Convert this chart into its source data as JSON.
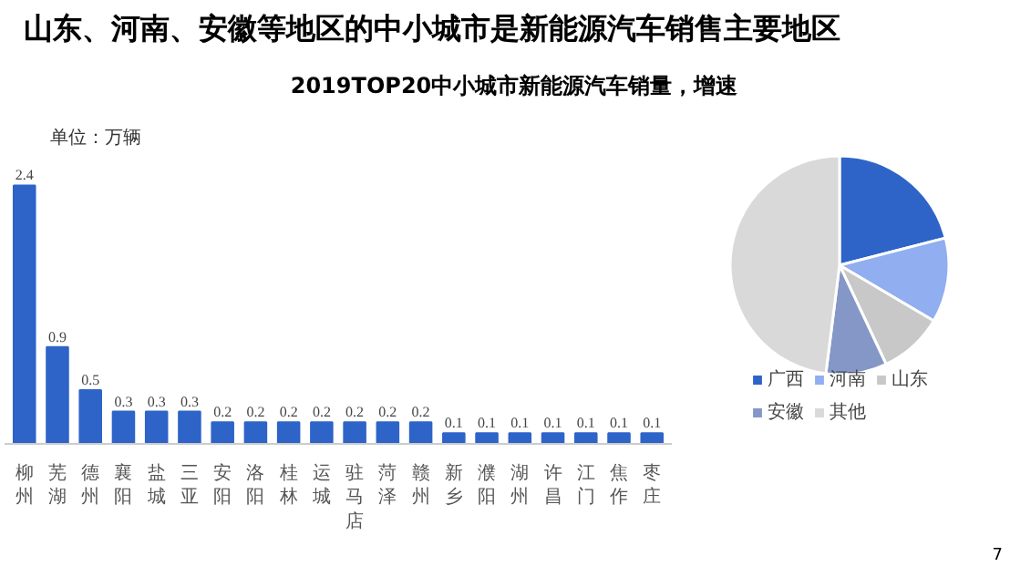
{
  "chart_data": [
    {
      "type": "bar",
      "title": "山东、河南、安徽等地区的中小城市是新能源汽车销售主要地区",
      "subtitle": "2019TOP20中小城市新能源汽车销量，增速",
      "ylabel": "单位：万辆",
      "categories": [
        "柳州",
        "芜湖",
        "德州",
        "襄阳",
        "盐城",
        "三亚",
        "安阳",
        "洛阳",
        "桂林",
        "运城",
        "驻马店",
        "菏泽",
        "赣州",
        "新乡",
        "濮阳",
        "湖州",
        "许昌",
        "江门",
        "焦作",
        "枣庄"
      ],
      "values": [
        2.4,
        0.9,
        0.5,
        0.3,
        0.3,
        0.3,
        0.2,
        0.2,
        0.2,
        0.2,
        0.2,
        0.2,
        0.2,
        0.1,
        0.1,
        0.1,
        0.1,
        0.1,
        0.1,
        0.1
      ],
      "color": "#2e64c8",
      "data_labels": true
    },
    {
      "type": "pie",
      "categories": [
        "广西",
        "河南",
        "山东",
        "安徽",
        "其他"
      ],
      "values": [
        21,
        12.5,
        9.5,
        9,
        48
      ],
      "colors": [
        "#2e64c8",
        "#91aef0",
        "#c8c8c8",
        "#8497c6",
        "#d9d9d9"
      ],
      "legend": "bottom",
      "annotations": [
        "7"
      ]
    }
  ]
}
